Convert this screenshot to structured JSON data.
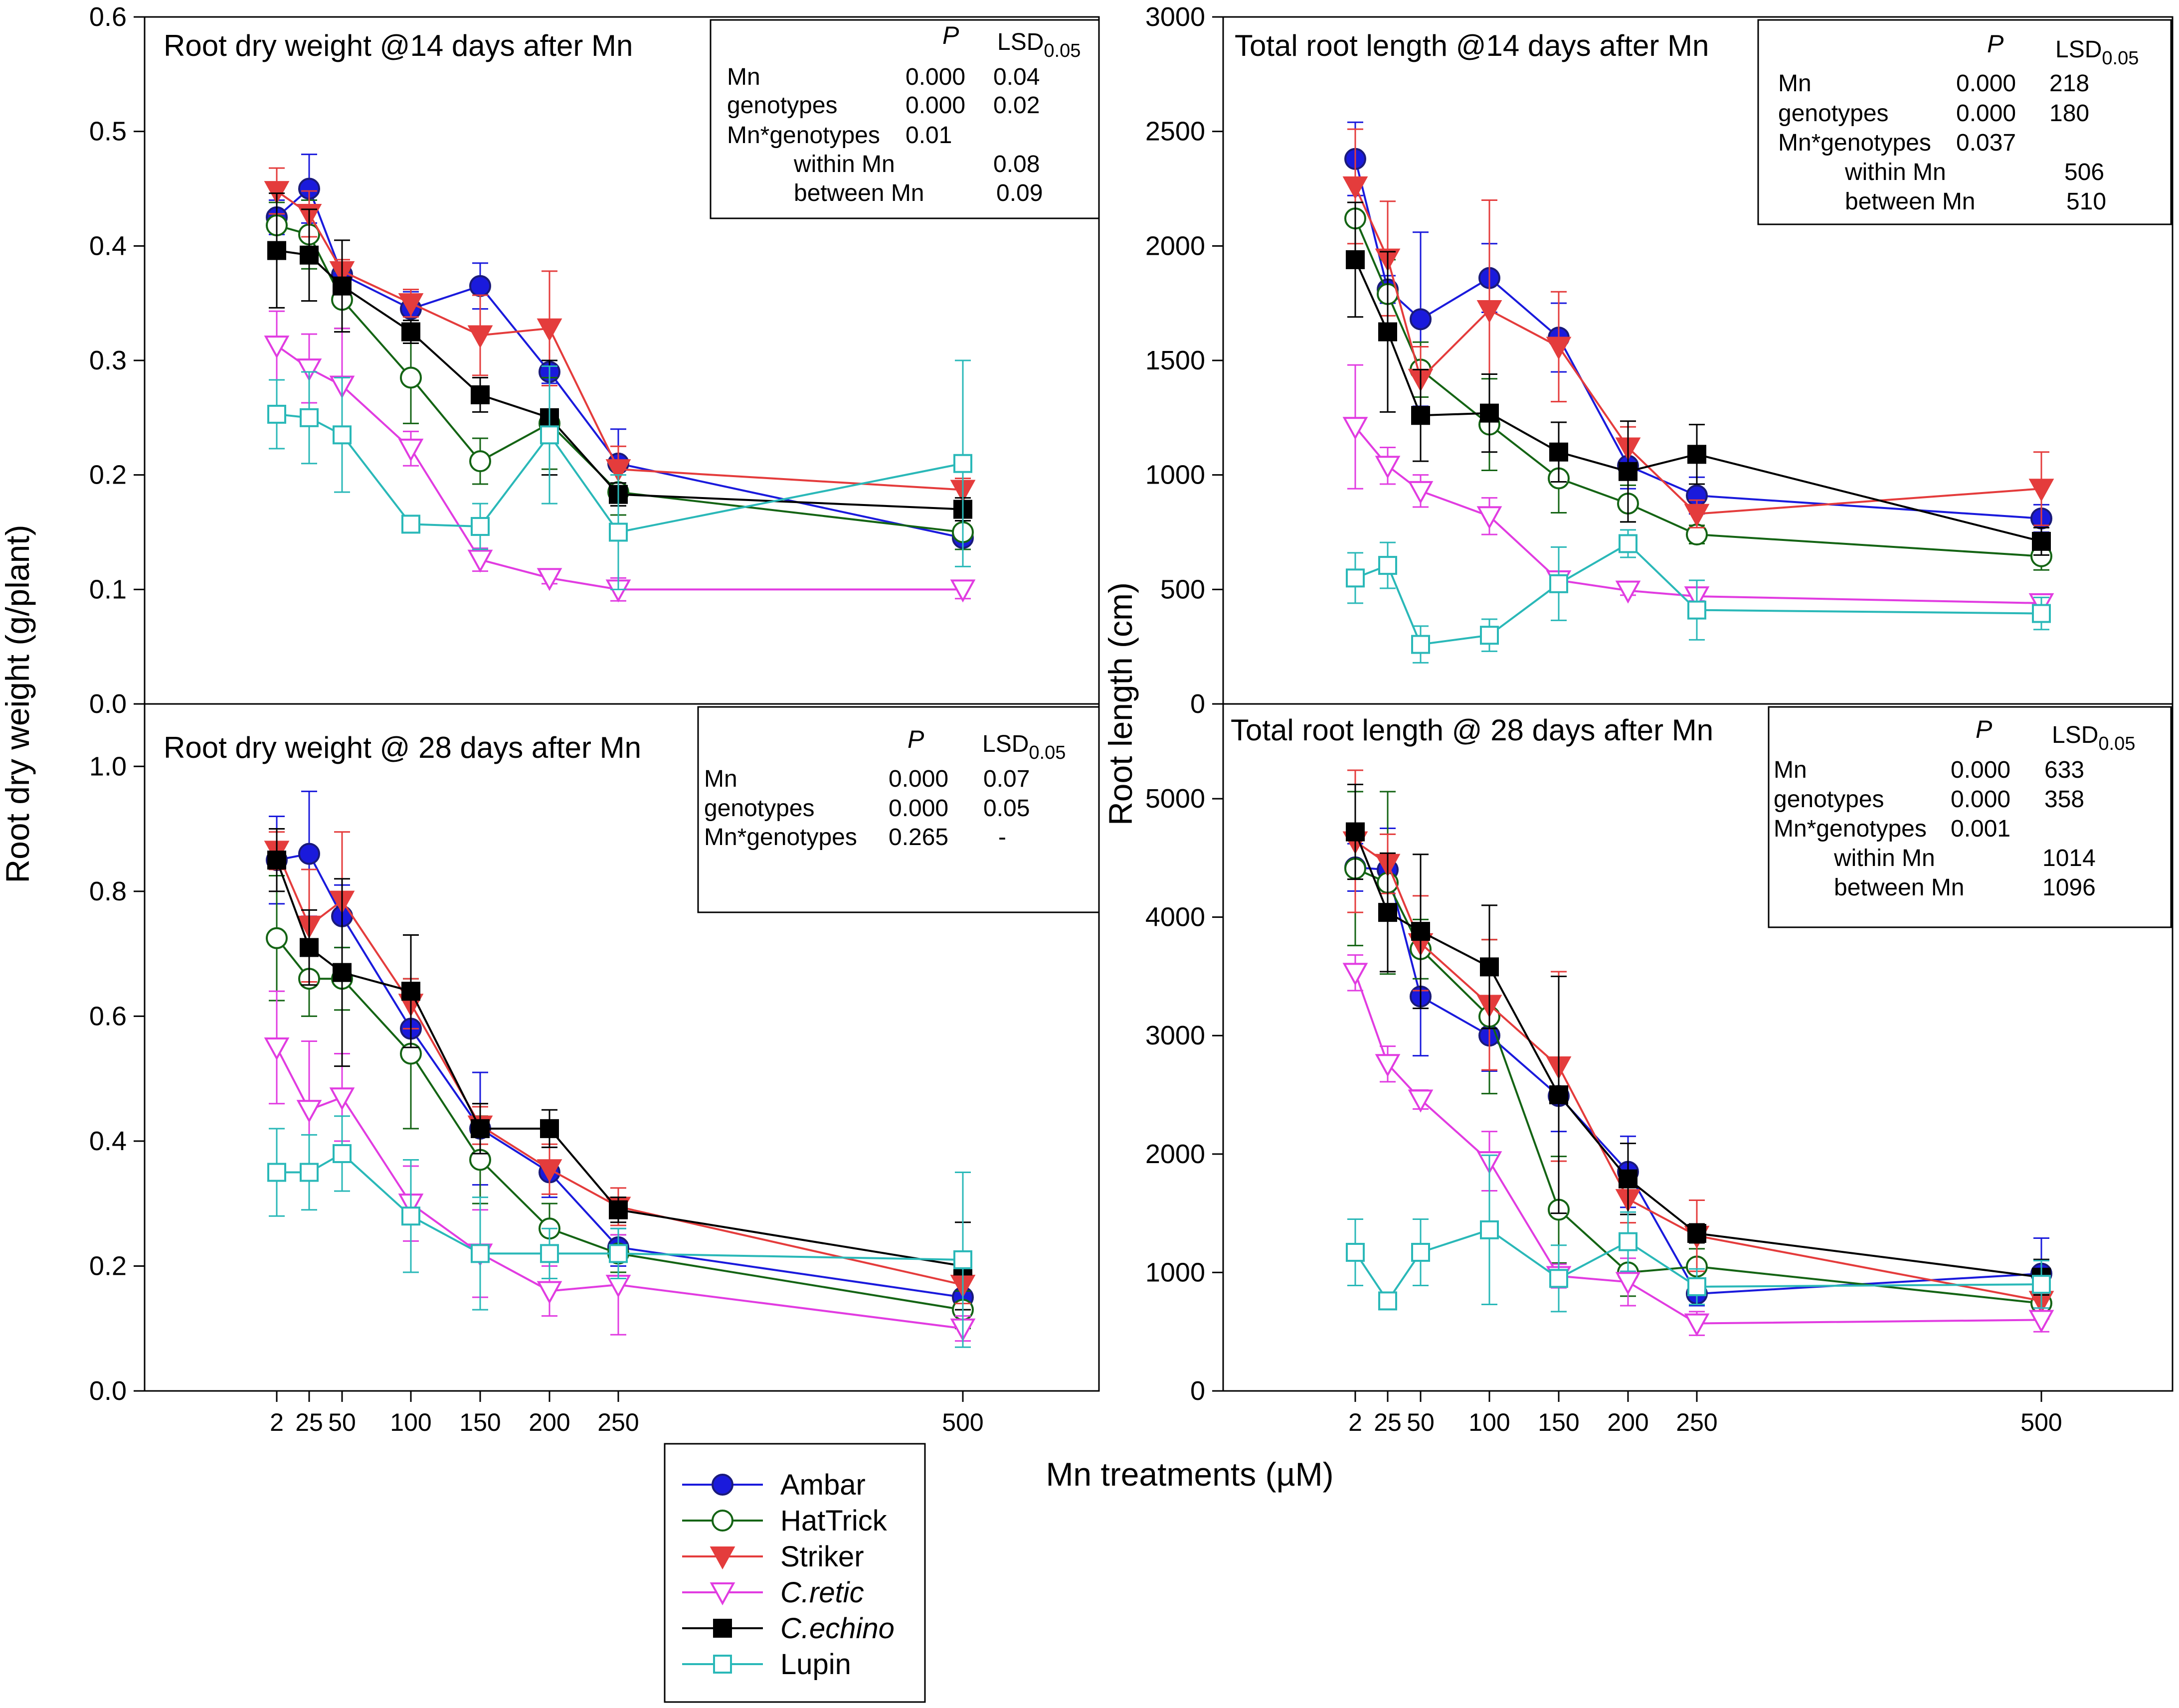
{
  "figure": {
    "ylabel_left": "Root dry weight (g/plant)",
    "ylabel_right": "Root length (cm)",
    "xlabel": "Mn treatments (µM)"
  },
  "legend": [
    {
      "name": "Ambar",
      "italic": false
    },
    {
      "name": "HatTrick",
      "italic": false
    },
    {
      "name": "Striker",
      "italic": false
    },
    {
      "name": "C.retic",
      "italic": true
    },
    {
      "name": "C.echino",
      "italic": true
    },
    {
      "name": "Lupin",
      "italic": false
    }
  ],
  "series_styles": [
    {
      "name": "Ambar",
      "color": "#1a1adc",
      "marker": "circle",
      "filled": true
    },
    {
      "name": "HatTrick",
      "color": "#146414",
      "marker": "circle",
      "filled": false
    },
    {
      "name": "Striker",
      "color": "#e43c3c",
      "marker": "triangle-down",
      "filled": true
    },
    {
      "name": "C.retic",
      "color": "#e13ce1",
      "marker": "triangle-down",
      "filled": false
    },
    {
      "name": "C.echino",
      "color": "#000000",
      "marker": "square",
      "filled": true
    },
    {
      "name": "Lupin",
      "color": "#2ab8b8",
      "marker": "square",
      "filled": false
    }
  ],
  "stats": [
    {
      "header": {
        "p": "P",
        "lsd_main": "LSD",
        "lsd_sub": "0.05"
      },
      "rows": [
        {
          "label": "Mn",
          "p": "0.000",
          "lsd": "0.04",
          "indent": false
        },
        {
          "label": "genotypes",
          "p": "0.000",
          "lsd": "0.02",
          "indent": false
        },
        {
          "label": "Mn*genotypes",
          "p": "0.01",
          "lsd": "",
          "indent": false
        },
        {
          "label": "within Mn",
          "p": "",
          "lsd": "0.08",
          "indent": true
        },
        {
          "label": "between Mn",
          "p": "",
          "lsd": "0.09",
          "indent": true
        }
      ]
    },
    {
      "header": {
        "p": "P",
        "lsd_main": "LSD",
        "lsd_sub": "0.05"
      },
      "rows": [
        {
          "label": "Mn",
          "p": "0.000",
          "lsd": "218",
          "indent": false
        },
        {
          "label": "genotypes",
          "p": "0.000",
          "lsd": "180",
          "indent": false
        },
        {
          "label": "Mn*genotypes",
          "p": "0.037",
          "lsd": "",
          "indent": false
        },
        {
          "label": "within Mn",
          "p": "",
          "lsd": "506",
          "indent": true
        },
        {
          "label": "between Mn",
          "p": "",
          "lsd": "510",
          "indent": true
        }
      ]
    },
    {
      "header": {
        "p": "P",
        "lsd_main": "LSD",
        "lsd_sub": "0.05"
      },
      "rows": [
        {
          "label": "Mn",
          "p": "0.000",
          "lsd": "0.07",
          "indent": false
        },
        {
          "label": "genotypes",
          "p": "0.000",
          "lsd": "0.05",
          "indent": false
        },
        {
          "label": "Mn*genotypes",
          "p": "0.265",
          "lsd": "-",
          "indent": false
        }
      ]
    },
    {
      "header": {
        "p": "P",
        "lsd_main": "LSD",
        "lsd_sub": "0.05"
      },
      "rows": [
        {
          "label": "Mn",
          "p": "0.000",
          "lsd": "633",
          "indent": false
        },
        {
          "label": "genotypes",
          "p": "0.000",
          "lsd": "358",
          "indent": false
        },
        {
          "label": "Mn*genotypes",
          "p": "0.001",
          "lsd": "",
          "indent": false
        },
        {
          "label": "within Mn",
          "p": "",
          "lsd": "1014",
          "indent": true
        },
        {
          "label": "between Mn",
          "p": "",
          "lsd": "1096",
          "indent": true
        }
      ]
    }
  ],
  "chart_data": [
    {
      "type": "line",
      "title": "Root dry weight @14 days after Mn",
      "ylim": [
        0,
        0.6
      ],
      "yticks": [
        "0.0",
        "0.1",
        "0.2",
        "0.3",
        "0.4",
        "0.5",
        "0.6"
      ],
      "ytick_values": [
        0,
        0.1,
        0.2,
        0.3,
        0.4,
        0.5,
        0.6
      ],
      "x": [
        2,
        25,
        50,
        100,
        150,
        200,
        250,
        500
      ],
      "xticks": [],
      "series": [
        {
          "name": "Ambar",
          "values": [
            0.425,
            0.45,
            0.375,
            0.345,
            0.365,
            0.29,
            0.21,
            0.145
          ],
          "err": [
            0.015,
            0.03,
            0.01,
            0.015,
            0.02,
            0.01,
            0.03,
            0.01
          ]
        },
        {
          "name": "HatTrick",
          "values": [
            0.418,
            0.41,
            0.353,
            0.285,
            0.212,
            0.245,
            0.185,
            0.15
          ],
          "err": [
            0.02,
            0.03,
            0.025,
            0.04,
            0.02,
            0.04,
            0.02,
            0.015
          ]
        },
        {
          "name": "Striker",
          "values": [
            0.448,
            0.428,
            0.378,
            0.35,
            0.322,
            0.328,
            0.205,
            0.187
          ],
          "err": [
            0.02,
            0.02,
            0.01,
            0.012,
            0.035,
            0.05,
            0.02,
            0.01
          ]
        },
        {
          "name": "C.retic",
          "values": [
            0.313,
            0.293,
            0.278,
            0.223,
            0.126,
            0.11,
            0.1,
            0.1
          ],
          "err": [
            0.03,
            0.03,
            0.05,
            0.015,
            0.01,
            0.005,
            0.01,
            0.008
          ]
        },
        {
          "name": "C.echino",
          "values": [
            0.396,
            0.392,
            0.365,
            0.325,
            0.27,
            0.25,
            0.183,
            0.17
          ],
          "err": [
            0.05,
            0.04,
            0.04,
            0.01,
            0.015,
            0.05,
            0.01,
            0.01
          ]
        },
        {
          "name": "Lupin",
          "values": [
            0.253,
            0.25,
            0.235,
            0.157,
            0.155,
            0.235,
            0.15,
            0.21
          ],
          "err": [
            0.03,
            0.04,
            0.05,
            0.005,
            0.02,
            0.06,
            0.05,
            0.09
          ]
        }
      ]
    },
    {
      "type": "line",
      "title": "Total root length @14 days after Mn",
      "ylim": [
        0,
        3000
      ],
      "yticks": [
        "0",
        "500",
        "1000",
        "1500",
        "2000",
        "2500",
        "3000"
      ],
      "ytick_values": [
        0,
        500,
        1000,
        1500,
        2000,
        2500,
        3000
      ],
      "x": [
        2,
        25,
        50,
        100,
        150,
        200,
        250,
        500
      ],
      "xticks": [],
      "series": [
        {
          "name": "Ambar",
          "values": [
            2380,
            1810,
            1680,
            1860,
            1600,
            1040,
            910,
            810
          ],
          "err": [
            160,
            60,
            380,
            150,
            150,
            100,
            80,
            60
          ]
        },
        {
          "name": "HatTrick",
          "values": [
            2120,
            1790,
            1460,
            1220,
            985,
            875,
            740,
            645
          ],
          "err": [
            150,
            150,
            120,
            200,
            150,
            80,
            40,
            60
          ]
        },
        {
          "name": "Striker",
          "values": [
            2260,
            1945,
            1420,
            1720,
            1560,
            1120,
            830,
            940
          ],
          "err": [
            250,
            250,
            140,
            480,
            240,
            90,
            60,
            160
          ]
        },
        {
          "name": "C.retic",
          "values": [
            1210,
            1040,
            930,
            820,
            540,
            495,
            470,
            440
          ],
          "err": [
            270,
            80,
            70,
            80,
            30,
            20,
            20,
            20
          ]
        },
        {
          "name": "C.echino",
          "values": [
            1940,
            1625,
            1260,
            1270,
            1100,
            1015,
            1090,
            710
          ],
          "err": [
            250,
            350,
            200,
            170,
            130,
            220,
            130,
            60
          ]
        },
        {
          "name": "Lupin",
          "values": [
            550,
            605,
            260,
            300,
            525,
            700,
            410,
            395
          ],
          "err": [
            110,
            100,
            80,
            70,
            160,
            60,
            130,
            70
          ]
        }
      ]
    },
    {
      "type": "line",
      "title": "Root dry weight @ 28 days after Mn",
      "ylim": [
        0,
        1.1
      ],
      "yticks": [
        "0.0",
        "0.2",
        "0.4",
        "0.6",
        "0.8",
        "1.0"
      ],
      "ytick_values": [
        0,
        0.2,
        0.4,
        0.6,
        0.8,
        1.0
      ],
      "x": [
        2,
        25,
        50,
        100,
        150,
        200,
        250,
        500
      ],
      "xticks": [
        "2",
        "25",
        "50",
        "100",
        "150",
        "200",
        "250",
        "500"
      ],
      "series": [
        {
          "name": "Ambar",
          "values": [
            0.85,
            0.86,
            0.76,
            0.58,
            0.42,
            0.35,
            0.23,
            0.15
          ],
          "err": [
            0.07,
            0.1,
            0.05,
            0.05,
            0.09,
            0.04,
            0.03,
            0.03
          ]
        },
        {
          "name": "HatTrick",
          "values": [
            0.725,
            0.66,
            0.66,
            0.54,
            0.37,
            0.26,
            0.22,
            0.13
          ],
          "err": [
            0.1,
            0.06,
            0.05,
            0.12,
            0.07,
            0.04,
            0.03,
            0.03
          ]
        },
        {
          "name": "Striker",
          "values": [
            0.865,
            0.745,
            0.785,
            0.62,
            0.425,
            0.355,
            0.295,
            0.17
          ],
          "err": [
            0.03,
            0.09,
            0.11,
            0.04,
            0.03,
            0.04,
            0.03,
            0.03
          ]
        },
        {
          "name": "C.retic",
          "values": [
            0.55,
            0.45,
            0.47,
            0.3,
            0.22,
            0.16,
            0.17,
            0.1
          ],
          "err": [
            0.09,
            0.11,
            0.07,
            0.06,
            0.07,
            0.04,
            0.08,
            0.02
          ]
        },
        {
          "name": "C.echino",
          "values": [
            0.85,
            0.71,
            0.67,
            0.64,
            0.42,
            0.42,
            0.29,
            0.2
          ],
          "err": [
            0.05,
            0.06,
            0.15,
            0.09,
            0.04,
            0.03,
            0.02,
            0.07
          ]
        },
        {
          "name": "Lupin",
          "values": [
            0.35,
            0.35,
            0.38,
            0.28,
            0.22,
            0.22,
            0.22,
            0.21
          ],
          "err": [
            0.07,
            0.06,
            0.06,
            0.09,
            0.09,
            0.04,
            0.04,
            0.14
          ]
        }
      ]
    },
    {
      "type": "line",
      "title": "Total root length @ 28 days after Mn",
      "ylim": [
        0,
        5800
      ],
      "yticks": [
        "0",
        "1000",
        "2000",
        "3000",
        "4000",
        "5000"
      ],
      "ytick_values": [
        0,
        1000,
        2000,
        3000,
        4000,
        5000
      ],
      "x": [
        2,
        25,
        50,
        100,
        150,
        200,
        250,
        500
      ],
      "xticks": [
        "2",
        "25",
        "50",
        "100",
        "150",
        "200",
        "250",
        "500"
      ],
      "series": [
        {
          "name": "Ambar",
          "values": [
            4420,
            4400,
            3330,
            3000,
            2490,
            1850,
            820,
            990
          ],
          "err": [
            200,
            350,
            500,
            300,
            300,
            300,
            100,
            300
          ]
        },
        {
          "name": "HatTrick",
          "values": [
            4410,
            4290,
            3730,
            3160,
            1530,
            1000,
            1050,
            740
          ],
          "err": [
            650,
            770,
            250,
            650,
            450,
            200,
            150,
            100
          ]
        },
        {
          "name": "Striker",
          "values": [
            4640,
            4450,
            3780,
            3260,
            2740,
            1620,
            1310,
            760
          ],
          "err": [
            600,
            250,
            400,
            550,
            800,
            200,
            300,
            150
          ]
        },
        {
          "name": "C.retic",
          "values": [
            3530,
            2760,
            2460,
            1940,
            970,
            920,
            570,
            600
          ],
          "err": [
            150,
            150,
            80,
            250,
            100,
            200,
            100,
            100
          ]
        },
        {
          "name": "C.echino",
          "values": [
            4720,
            4040,
            3880,
            3580,
            2500,
            1790,
            1330,
            960
          ],
          "err": [
            400,
            500,
            650,
            520,
            1000,
            300,
            80,
            150
          ]
        },
        {
          "name": "Lupin",
          "values": [
            1170,
            760,
            1170,
            1360,
            950,
            1260,
            880,
            900
          ],
          "err": [
            280,
            60,
            280,
            630,
            280,
            250,
            150,
            200
          ]
        }
      ]
    }
  ]
}
